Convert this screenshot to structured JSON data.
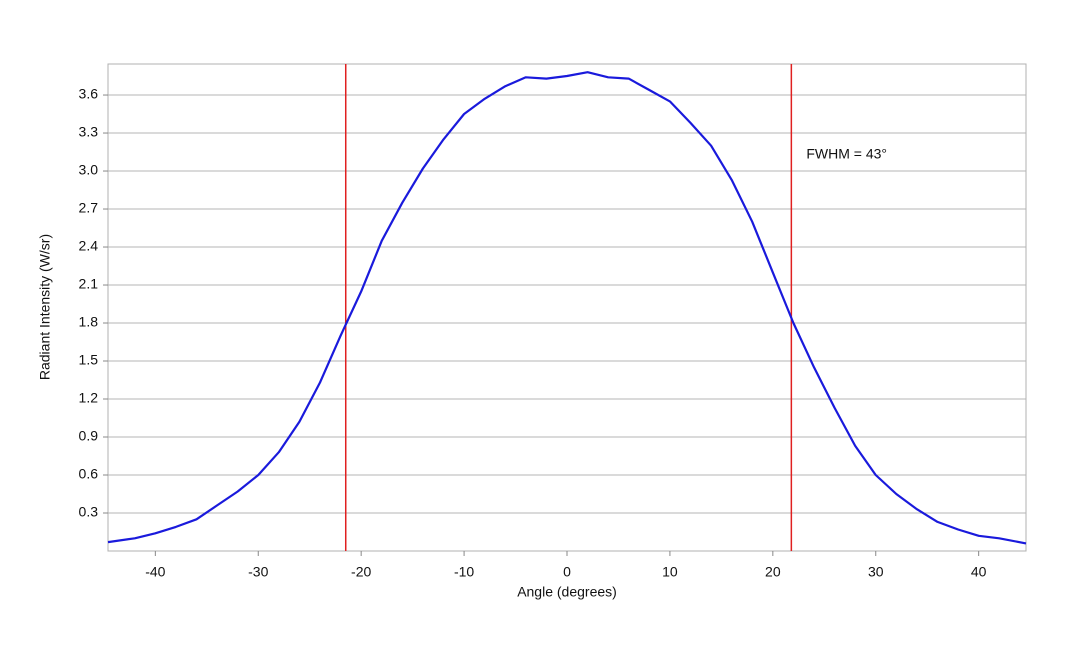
{
  "chart_data": {
    "type": "line",
    "x_label": "Angle (degrees)",
    "y_label": "Radiant Intensity (W/sr)",
    "annotation": "FWHM = 43°",
    "x": [
      -44.6,
      -42,
      -40,
      -38,
      -36,
      -34,
      -32,
      -30,
      -28,
      -26,
      -24,
      -22,
      -20,
      -18,
      -16,
      -14,
      -12,
      -10,
      -8,
      -6,
      -4,
      -2,
      0,
      2,
      4,
      6,
      8,
      10,
      12,
      14,
      16,
      18,
      20,
      22,
      24,
      26,
      28,
      30,
      32,
      34,
      36,
      38,
      40,
      42,
      44.6
    ],
    "series": [
      {
        "color": "#1a1adc",
        "values": [
          0.07,
          0.1,
          0.14,
          0.19,
          0.25,
          0.36,
          0.47,
          0.6,
          0.78,
          1.02,
          1.33,
          1.7,
          2.05,
          2.45,
          2.75,
          3.02,
          3.25,
          3.45,
          3.57,
          3.67,
          3.74,
          3.73,
          3.75,
          3.78,
          3.74,
          3.73,
          3.64,
          3.55,
          3.38,
          3.2,
          2.93,
          2.6,
          2.2,
          1.8,
          1.45,
          1.13,
          0.83,
          0.6,
          0.45,
          0.33,
          0.23,
          0.17,
          0.12,
          0.1,
          0.06
        ]
      }
    ],
    "markers": [
      -21.5,
      21.8
    ],
    "marker_color": "#e02020",
    "xlim": [
      -44.6,
      44.6
    ],
    "xticks": [
      -40,
      -30,
      -20,
      -10,
      0,
      10,
      20,
      30,
      40
    ],
    "ylim": [
      0,
      3.845
    ],
    "yticks": [
      0.3,
      0.6,
      0.9,
      1.2,
      1.5,
      1.8,
      2.1,
      2.4,
      2.7,
      {
        "value": 3,
        "label": "3.0"
      },
      3.3,
      3.6
    ],
    "grid": true
  }
}
